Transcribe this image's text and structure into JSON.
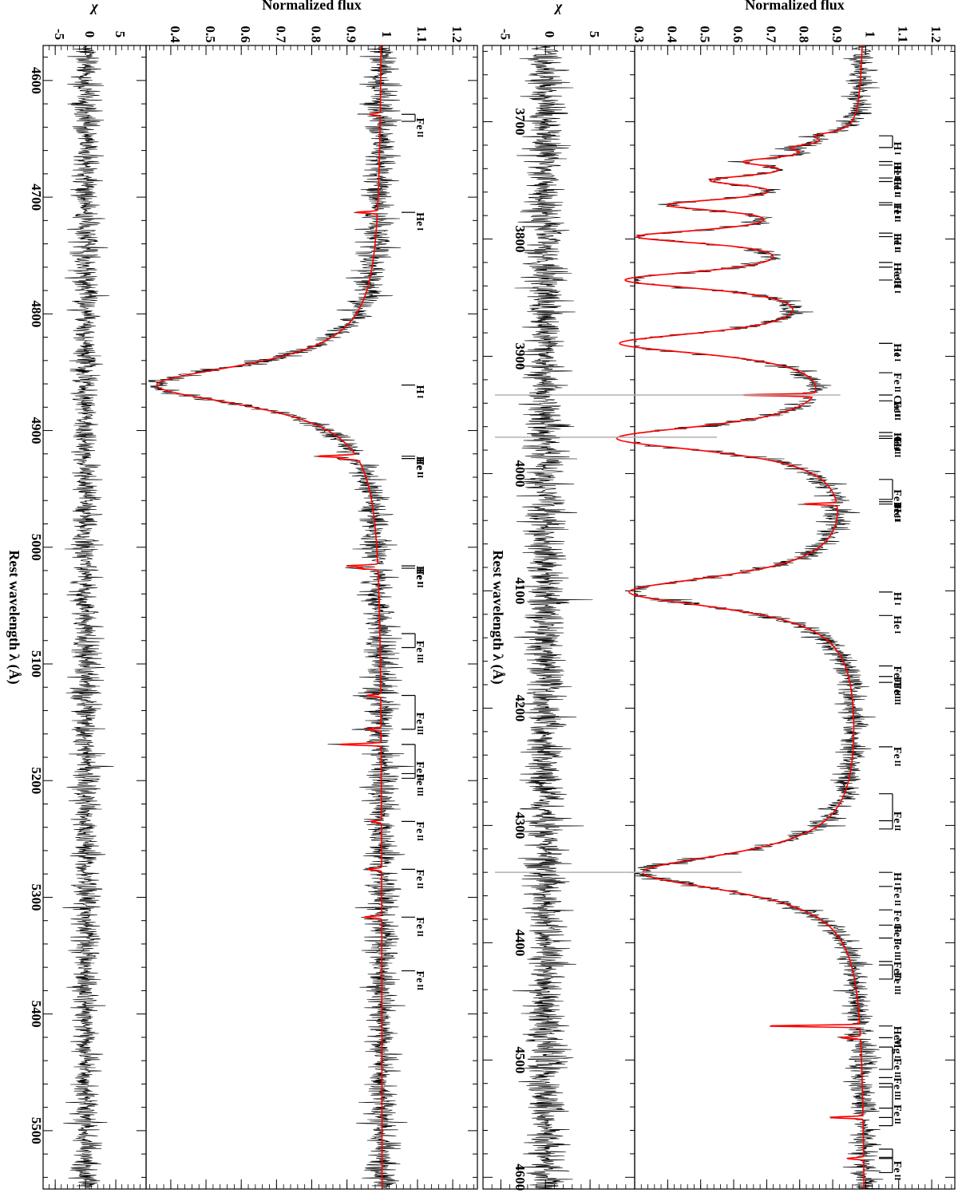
{
  "chart_data": [
    {
      "type": "line",
      "panel": "right",
      "orientation": "rotated-90",
      "xlabel": "Rest wavelength λ (Å)",
      "ylabel_flux": "Normalized flux",
      "ylabel_resid": "χ",
      "xlim": [
        3635,
        4610
      ],
      "flux_ylim": [
        0.3,
        1.27
      ],
      "resid_ylim": [
        -7,
        10
      ],
      "x_ticks": [
        3700,
        3800,
        3900,
        4000,
        4100,
        4200,
        4300,
        4400,
        4500,
        4600
      ],
      "flux_ticks": [
        0.3,
        0.4,
        0.5,
        0.6,
        0.7,
        0.8,
        0.9,
        1,
        1.1,
        1.2
      ],
      "resid_ticks": [
        -5,
        0,
        5
      ],
      "series": [
        {
          "name": "",
          "role": "observed",
          "color": "#000000"
        },
        {
          "name": "",
          "role": "model",
          "color": "#ff0000"
        }
      ],
      "model_profile": {
        "continuum": 1.0,
        "balmer_lines": [
          {
            "center": 3712,
            "depth": 0.09,
            "width": 4
          },
          {
            "center": 3722,
            "depth": 0.13,
            "width": 4
          },
          {
            "center": 3734,
            "depth": 0.27,
            "width": 5
          },
          {
            "center": 3750,
            "depth": 0.36,
            "width": 6
          },
          {
            "center": 3771,
            "depth": 0.49,
            "width": 7
          },
          {
            "center": 3798,
            "depth": 0.59,
            "width": 8
          },
          {
            "center": 3835,
            "depth": 0.65,
            "width": 10
          },
          {
            "center": 3889,
            "depth": 0.69,
            "width": 12
          },
          {
            "center": 3970,
            "depth": 0.72,
            "width": 14
          },
          {
            "center": 4101,
            "depth": 0.7,
            "width": 17
          },
          {
            "center": 4340,
            "depth": 0.67,
            "width": 20
          }
        ],
        "narrow_lines": [
          {
            "center": 3933,
            "depth": 0.22
          },
          {
            "center": 4026,
            "depth": 0.1
          },
          {
            "center": 4471,
            "depth": 0.28
          },
          {
            "center": 4481,
            "depth": 0.06
          },
          {
            "center": 4549,
            "depth": 0.1
          },
          {
            "center": 4584,
            "depth": 0.05
          }
        ],
        "noise_sigma": 0.022
      },
      "gray_artifacts": [
        3933,
        3969,
        4340
      ],
      "line_ids": [
        {
          "text": "H",
          "ion": "I",
          "x": [
            3712,
            3722
          ]
        },
        {
          "text": "He",
          "ion": "I",
          "x": [
            3734
          ]
        },
        {
          "text": "H",
          "ion": "I",
          "x": [
            3737
          ]
        },
        {
          "text": "Fe",
          "ion": "II",
          "x": [
            3748
          ]
        },
        {
          "text": "H",
          "ion": "I",
          "x": [
            3751
          ]
        },
        {
          "text": "Fe",
          "ion": "II",
          "x": [
            3769
          ]
        },
        {
          "text": "H",
          "ion": "I",
          "x": [
            3771
          ]
        },
        {
          "text": "Fe",
          "ion": "II",
          "x": [
            3795
          ]
        },
        {
          "text": "H",
          "ion": "I",
          "x": [
            3798
          ]
        },
        {
          "text": "Fe",
          "ion": "II",
          "x": [
            3824
          ]
        },
        {
          "text": "He",
          "ion": "I",
          "x": [
            3820
          ]
        },
        {
          "text": "H",
          "ion": "I",
          "x": [
            3835
          ]
        },
        {
          "text": "He",
          "ion": "I",
          "x": [
            3889
          ]
        },
        {
          "text": "H",
          "ion": "I",
          "x": [
            3889
          ]
        },
        {
          "text": "Fe",
          "ion": "II",
          "x": [
            3914
          ]
        },
        {
          "text": "Ca",
          "ion": "II",
          "x": [
            3933
          ]
        },
        {
          "text": "Fe",
          "ion": "II",
          "x": [
            3938
          ]
        },
        {
          "text": "He",
          "ion": "I",
          "x": [
            3965
          ]
        },
        {
          "text": "Ca",
          "ion": "II",
          "x": [
            3968
          ]
        },
        {
          "text": "H",
          "ion": "I",
          "x": [
            3970
          ]
        },
        {
          "text": "Fe",
          "ion": "III",
          "x": [
            4005,
            4022
          ]
        },
        {
          "text": "Fe",
          "ion": "II",
          "x": [
            4024
          ]
        },
        {
          "text": "He",
          "ion": "I",
          "x": [
            4026
          ]
        },
        {
          "text": "H",
          "ion": "I",
          "x": [
            4101
          ]
        },
        {
          "text": "He",
          "ion": "I",
          "x": [
            4121
          ]
        },
        {
          "text": "Fe",
          "ion": "III",
          "x": [
            4164
          ]
        },
        {
          "text": "Fe",
          "ion": "II",
          "x": [
            4173
          ]
        },
        {
          "text": "Fe",
          "ion": "III",
          "x": [
            4178
          ]
        },
        {
          "text": "Fe",
          "ion": "II",
          "x": [
            4178
          ]
        },
        {
          "text": "Fe",
          "ion": "II",
          "x": [
            4233
          ]
        },
        {
          "text": "Fe",
          "ion": "II",
          "x": [
            4273,
            4296,
            4303
          ]
        },
        {
          "text": "H",
          "ion": "I",
          "x": [
            4340
          ]
        },
        {
          "text": "Fe",
          "ion": "II",
          "x": [
            4352
          ]
        },
        {
          "text": "Fe",
          "ion": "III",
          "x": [
            4372
          ]
        },
        {
          "text": "Fe",
          "ion": "II",
          "x": [
            4385
          ]
        },
        {
          "text": "Fe",
          "ion": "III",
          "x": [
            4396
          ]
        },
        {
          "text": "Fe",
          "ion": "II",
          "x": [
            4416
          ]
        },
        {
          "text": "Fe",
          "ion": "III",
          "x": [
            4419,
            4431
          ]
        },
        {
          "text": "He",
          "ion": "I",
          "x": [
            4471
          ]
        },
        {
          "text": "Mg",
          "ion": "II",
          "x": [
            4481
          ]
        },
        {
          "text": "Fe",
          "ion": "II",
          "x": [
            4489,
            4508
          ]
        },
        {
          "text": "Fe",
          "ion": "III",
          "x": [
            4515
          ]
        },
        {
          "text": "Fe",
          "ion": "II",
          "x": [
            4520,
            4523,
            4541,
            4549,
            4556
          ]
        },
        {
          "text": "Fe",
          "ion": "II",
          "x": [
            4576,
            4583,
            4584,
            4596
          ]
        }
      ]
    },
    {
      "type": "line",
      "panel": "left",
      "orientation": "rotated-90",
      "xlabel": "Rest wavelength λ (Å)",
      "ylabel_flux": "Normalized flux",
      "ylabel_resid": "χ",
      "xlim": [
        4570,
        5550
      ],
      "flux_ylim": [
        0.33,
        1.27
      ],
      "resid_ylim": [
        -7,
        10
      ],
      "x_ticks": [
        4600,
        4700,
        4800,
        4900,
        5000,
        5100,
        5200,
        5300,
        5400,
        5500
      ],
      "flux_ticks": [
        0.4,
        0.5,
        0.6,
        0.7,
        0.8,
        0.9,
        1,
        1.1,
        1.2
      ],
      "resid_ticks": [
        -5,
        0,
        5
      ],
      "series": [
        {
          "name": "",
          "role": "observed",
          "color": "#000000"
        },
        {
          "name": "",
          "role": "model",
          "color": "#ff0000"
        }
      ],
      "model_profile": {
        "continuum": 1.0,
        "balmer_lines": [
          {
            "center": 4861,
            "depth": 0.64,
            "width": 22
          }
        ],
        "narrow_lines": [
          {
            "center": 4629,
            "depth": 0.03
          },
          {
            "center": 4713,
            "depth": 0.06
          },
          {
            "center": 4922,
            "depth": 0.11
          },
          {
            "center": 4924,
            "depth": 0.05
          },
          {
            "center": 5016,
            "depth": 0.09
          },
          {
            "center": 5018,
            "depth": 0.06
          },
          {
            "center": 5127,
            "depth": 0.04
          },
          {
            "center": 5156,
            "depth": 0.04
          },
          {
            "center": 5169,
            "depth": 0.12
          },
          {
            "center": 5235,
            "depth": 0.03
          },
          {
            "center": 5276,
            "depth": 0.04
          },
          {
            "center": 5317,
            "depth": 0.05
          }
        ],
        "noise_sigma": 0.023
      },
      "gray_artifacts": [],
      "line_ids": [
        {
          "text": "Fe",
          "ion": "II",
          "x": [
            4629,
            4635
          ]
        },
        {
          "text": "He",
          "ion": "I",
          "x": [
            4713
          ]
        },
        {
          "text": "H",
          "ion": "I",
          "x": [
            4861
          ]
        },
        {
          "text": "He",
          "ion": "I",
          "x": [
            4922
          ]
        },
        {
          "text": "Fe",
          "ion": "II",
          "x": [
            4924
          ]
        },
        {
          "text": "He",
          "ion": "I",
          "x": [
            5016
          ]
        },
        {
          "text": "Fe",
          "ion": "II",
          "x": [
            5018
          ]
        },
        {
          "text": "Fe",
          "ion": "III",
          "x": [
            5074,
            5086
          ]
        },
        {
          "text": "Fe",
          "ion": "III",
          "x": [
            5127,
            5156
          ]
        },
        {
          "text": "Fe",
          "ion": "III",
          "x": [
            5194
          ]
        },
        {
          "text": "Fe",
          "ion": "II",
          "x": [
            5169,
            5198
          ]
        },
        {
          "text": "Fe",
          "ion": "II",
          "x": [
            5235
          ]
        },
        {
          "text": "Fe",
          "ion": "II",
          "x": [
            5276
          ]
        },
        {
          "text": "Fe",
          "ion": "II",
          "x": [
            5317
          ]
        },
        {
          "text": "Fe",
          "ion": "II",
          "x": [
            5363
          ]
        }
      ]
    }
  ]
}
